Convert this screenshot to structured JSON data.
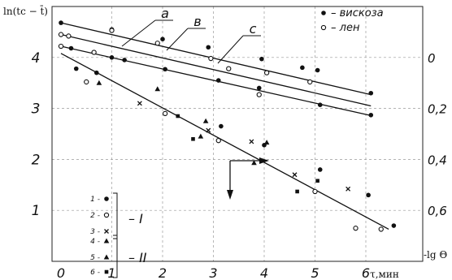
{
  "chart_data": {
    "type": "scatter",
    "ylabel": "ln(tc − t̄)",
    "xlabel": "τ,мин",
    "right_axis_label": "-lg Θ",
    "xlim": [
      0,
      6.6
    ],
    "ylim": [
      0,
      4.85
    ],
    "x_ticks": [
      "0",
      "1",
      "2",
      "3",
      "4",
      "5",
      "6"
    ],
    "y_ticks": [
      "1",
      "2",
      "3",
      "4"
    ],
    "right_ticks": [
      "0",
      "0,2",
      "0,4",
      "0,6"
    ],
    "grid": true,
    "legend_top": [
      {
        "marker": "filled-circle",
        "label": "– вискоза"
      },
      {
        "marker": "open-circle",
        "label": "– лен"
      }
    ],
    "line_labels": [
      "а",
      "в",
      "с"
    ],
    "group_legend": {
      "group_I": {
        "roman": "– I",
        "items": [
          {
            "num": "1 -",
            "marker": "filled-circle"
          },
          {
            "num": "2 -",
            "marker": "open-circle"
          },
          {
            "num": "3 -",
            "marker": "cross"
          }
        ]
      },
      "group_II": {
        "roman": "– II",
        "items": [
          {
            "num": "4 -",
            "marker": "filled-triangle"
          },
          {
            "num": "5 -",
            "marker": "filled-triangle"
          },
          {
            "num": "6 -",
            "marker": "filled-square"
          }
        ]
      }
    },
    "lines": [
      {
        "name": "а",
        "x": [
          0,
          6.1
        ],
        "y": [
          4.68,
          3.27
        ]
      },
      {
        "name": "в",
        "x": [
          0,
          6.1
        ],
        "y": [
          4.45,
          3.05
        ]
      },
      {
        "name": "с",
        "x": [
          0,
          6.1
        ],
        "y": [
          4.22,
          2.86
        ]
      },
      {
        "name": "main",
        "x": [
          0,
          6.45
        ],
        "y": [
          4.08,
          0.63
        ]
      }
    ],
    "series": [
      {
        "marker": "filled-circle",
        "points": [
          [
            0,
            4.68
          ],
          [
            1.0,
            4.55
          ],
          [
            2.0,
            4.36
          ],
          [
            2.9,
            4.2
          ],
          [
            3.95,
            3.97
          ],
          [
            4.75,
            3.8
          ],
          [
            5.05,
            3.75
          ],
          [
            6.1,
            3.3
          ],
          [
            0,
            4.22
          ],
          [
            0.2,
            4.18
          ],
          [
            1.0,
            4.0
          ],
          [
            1.25,
            3.95
          ],
          [
            2.05,
            3.77
          ],
          [
            3.1,
            3.55
          ],
          [
            3.9,
            3.4
          ],
          [
            5.1,
            3.07
          ],
          [
            6.1,
            2.87
          ],
          [
            0.7,
            3.7
          ],
          [
            0.3,
            3.78
          ],
          [
            3.15,
            2.65
          ],
          [
            4.0,
            2.28
          ],
          [
            5.1,
            1.8
          ],
          [
            6.05,
            1.3
          ],
          [
            6.55,
            0.7
          ]
        ]
      },
      {
        "marker": "open-circle",
        "points": [
          [
            0,
            4.45
          ],
          [
            0.15,
            4.42
          ],
          [
            1.0,
            4.53
          ],
          [
            1.9,
            4.28
          ],
          [
            2.95,
            3.98
          ],
          [
            3.3,
            3.78
          ],
          [
            4.05,
            3.7
          ],
          [
            4.9,
            3.52
          ],
          [
            0,
            4.22
          ],
          [
            0.5,
            3.52
          ],
          [
            2.05,
            2.9
          ],
          [
            3.1,
            2.37
          ],
          [
            5.0,
            1.37
          ],
          [
            5.8,
            0.65
          ],
          [
            6.3,
            0.63
          ],
          [
            0.65,
            4.1
          ],
          [
            3.9,
            3.27
          ]
        ]
      },
      {
        "marker": "cross",
        "points": [
          [
            1.55,
            3.1
          ],
          [
            2.9,
            2.57
          ],
          [
            3.75,
            2.35
          ],
          [
            4.6,
            1.7
          ],
          [
            5.65,
            1.42
          ]
        ]
      },
      {
        "marker": "filled-triangle",
        "points": [
          [
            0.75,
            3.5
          ],
          [
            1.9,
            3.38
          ],
          [
            2.75,
            2.45
          ],
          [
            2.85,
            2.75
          ],
          [
            3.8,
            1.93
          ],
          [
            4.05,
            2.33
          ]
        ]
      },
      {
        "marker": "filled-square",
        "points": [
          [
            2.6,
            2.4
          ],
          [
            2.3,
            2.85
          ],
          [
            4.65,
            1.37
          ],
          [
            5.05,
            1.58
          ]
        ]
      }
    ]
  }
}
